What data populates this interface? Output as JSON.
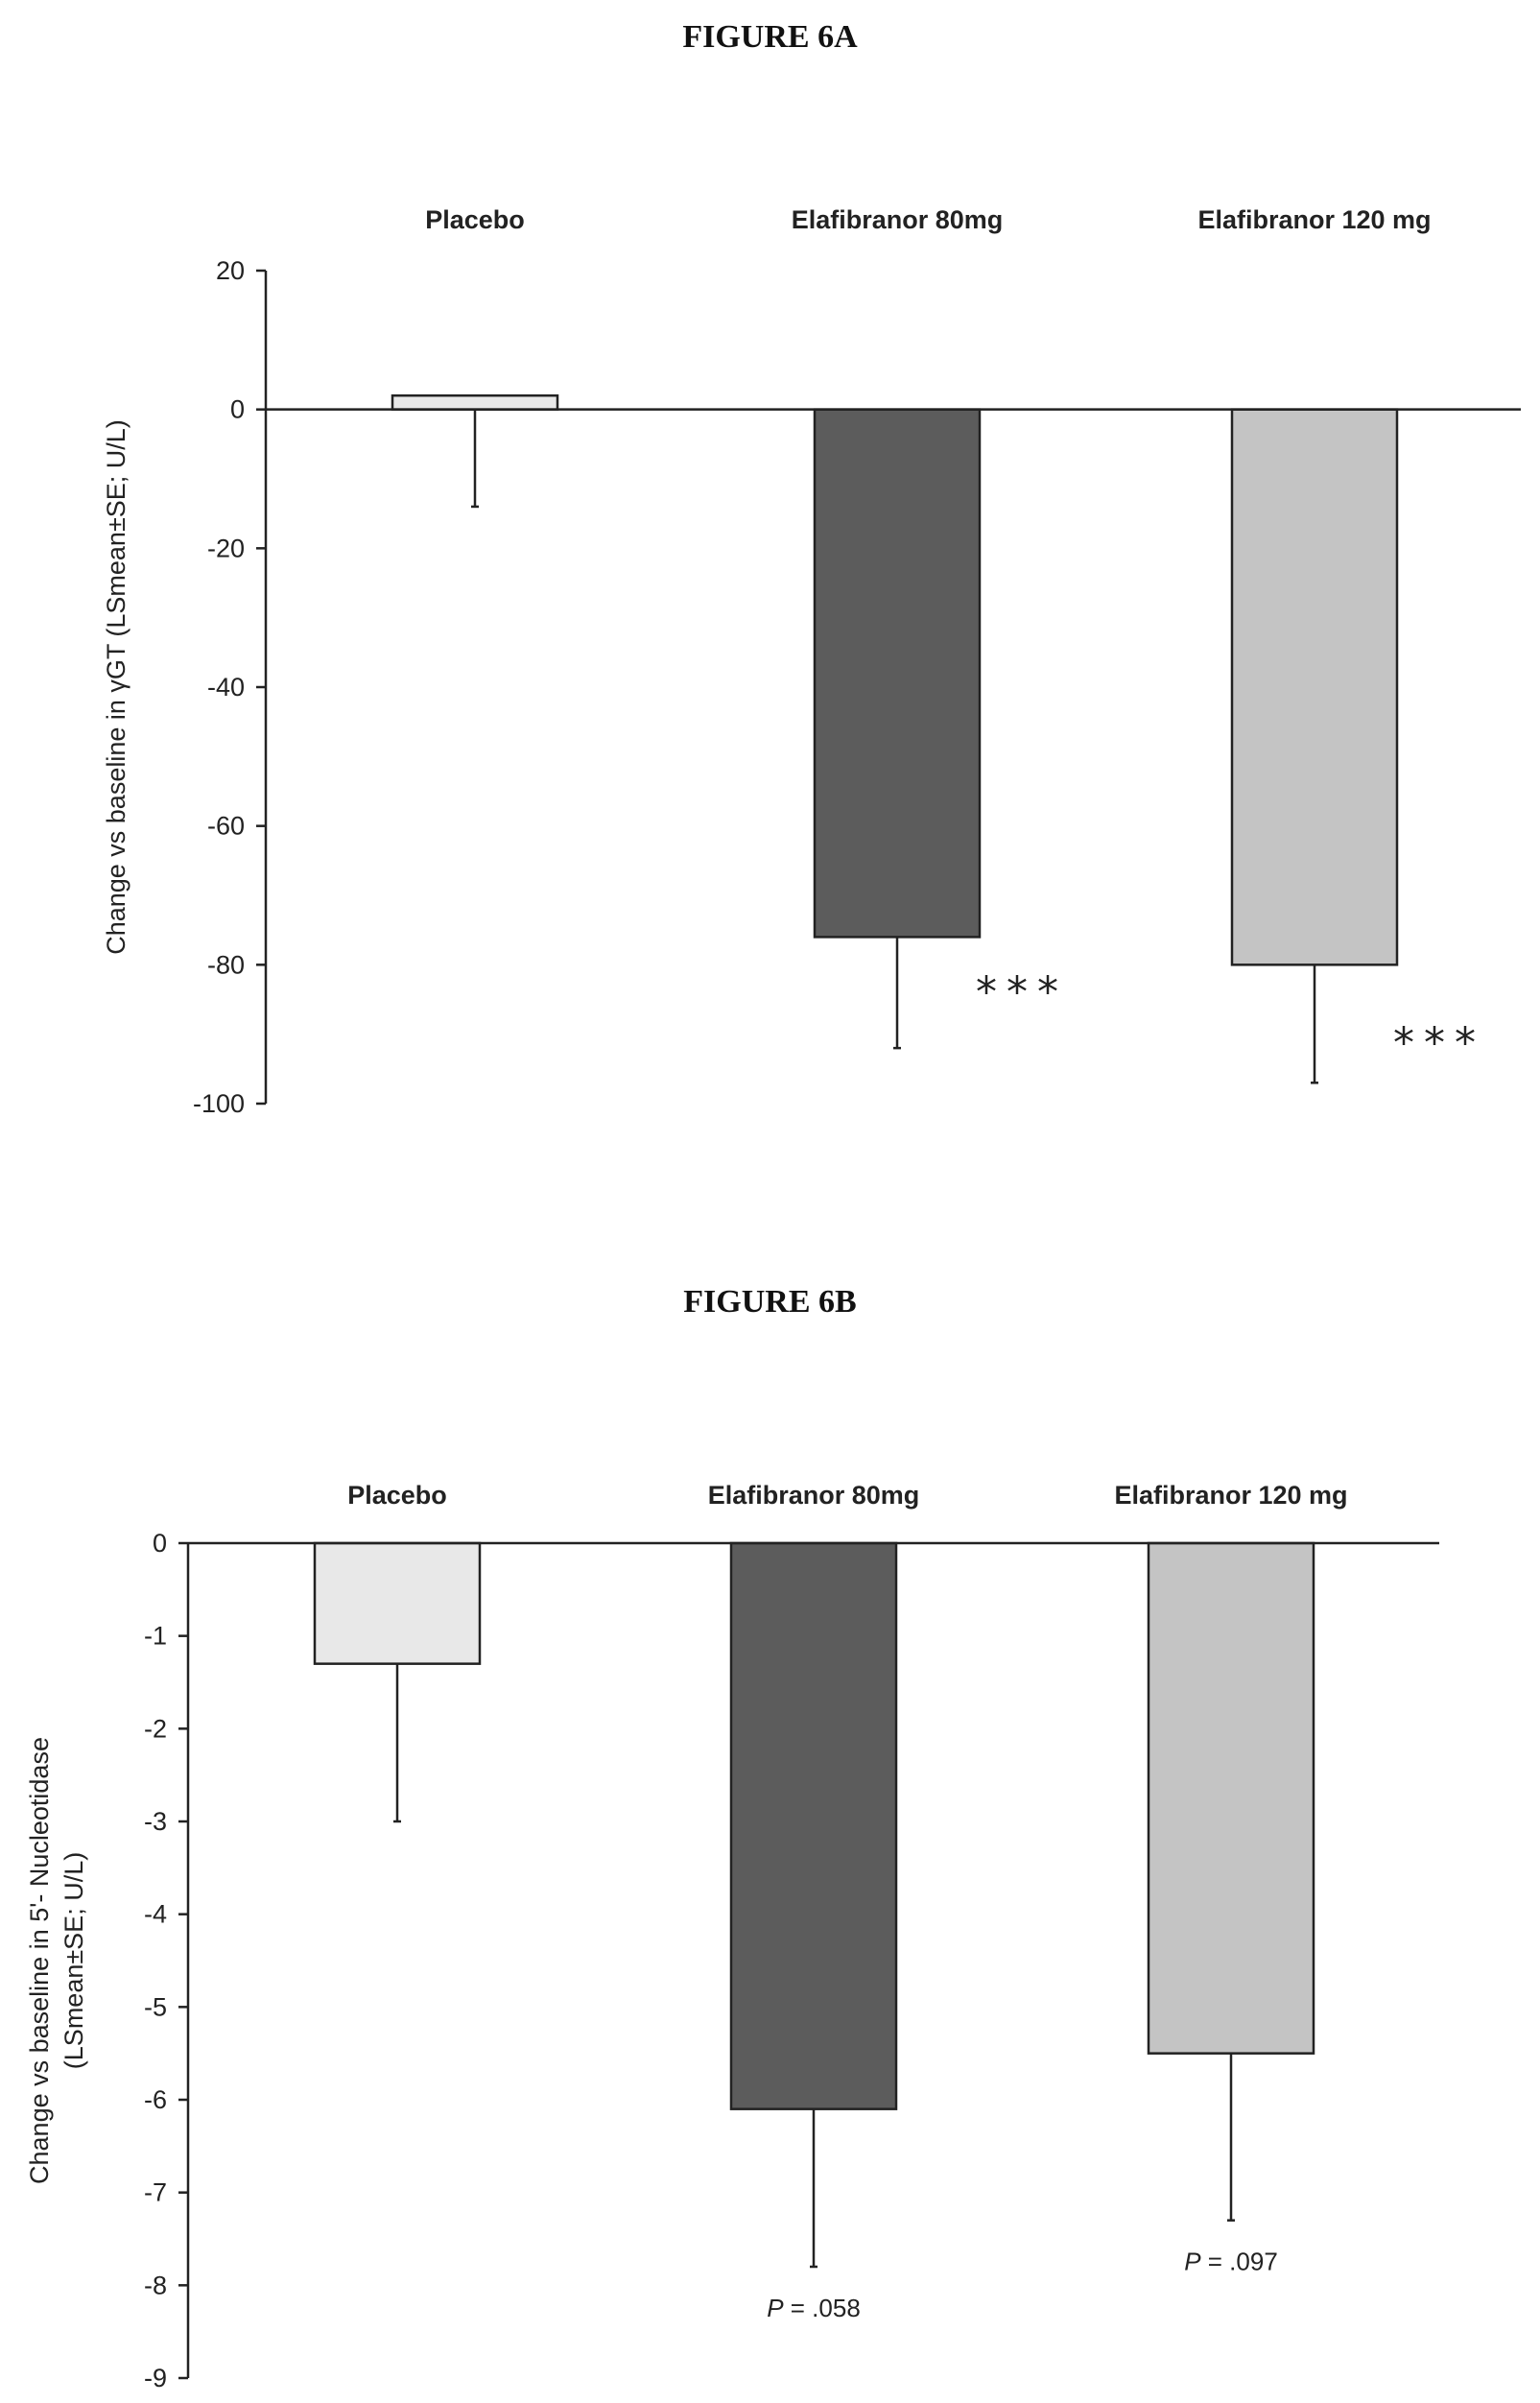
{
  "figures": {
    "a": {
      "title": "FIGURE 6A"
    },
    "b": {
      "title": "FIGURE 6B"
    }
  },
  "chart_data": [
    {
      "type": "bar",
      "title": "FIGURE 6A",
      "ylabel": "Change vs baseline  in γGT (LSmean±SE; U/L)",
      "categories": [
        "Placebo",
        "Elafibranor 80mg",
        "Elafibranor 120 mg"
      ],
      "values": [
        2,
        -76,
        -80
      ],
      "error_low": [
        -14,
        -92,
        -97
      ],
      "annotations": [
        "",
        "***",
        "***"
      ],
      "ylim": [
        -100,
        20
      ],
      "yticks": [
        20,
        0,
        -20,
        -40,
        -60,
        -80,
        -100
      ],
      "colors": [
        "#e8e8e8",
        "#5c5c5c",
        "#c4c4c4"
      ],
      "grid": false,
      "legend": "none"
    },
    {
      "type": "bar",
      "title": "FIGURE 6B",
      "ylabel_line1": "Change  vs baseline in 5'- Nucleotidase",
      "ylabel_line2": "(LSmean±SE; U/L)",
      "categories": [
        "Placebo",
        "Elafibranor 80mg",
        "Elafibranor 120 mg"
      ],
      "values": [
        -1.3,
        -6.1,
        -5.5
      ],
      "error_low": [
        -3.0,
        -7.8,
        -7.3
      ],
      "annotations": [
        "",
        "P = .058",
        "P = .097"
      ],
      "ylim": [
        -9,
        0
      ],
      "yticks": [
        0,
        -1,
        -2,
        -3,
        -4,
        -5,
        -6,
        -7,
        -8,
        -9
      ],
      "colors": [
        "#e8e8e8",
        "#5c5c5c",
        "#c4c4c4"
      ],
      "grid": false,
      "legend": "none"
    }
  ]
}
